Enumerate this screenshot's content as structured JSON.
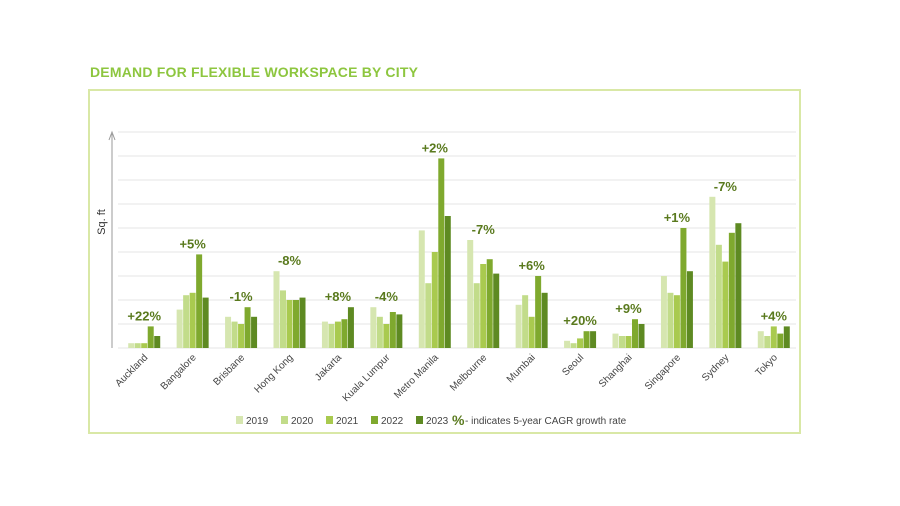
{
  "title": "DEMAND FOR FLEXIBLE WORKSPACE BY CITY",
  "legend_note_symbol": "%",
  "legend_note_text": " - indicates 5-year CAGR growth rate",
  "colors": {
    "title": "#8dc63f",
    "frame": "#d9e8a6",
    "s2019": "#d6e6b0",
    "s2020": "#c2dc8a",
    "s2021": "#a9ca4f",
    "s2022": "#7fa92e",
    "s2023": "#5e8a22",
    "annotation": "#5a7a1e",
    "grid": "#e6e6e6"
  },
  "chart_data": {
    "type": "bar",
    "title": "DEMAND FOR FLEXIBLE WORKSPACE BY CITY",
    "xlabel": "",
    "ylabel": "Sq. ft",
    "ylim": [
      0,
      9
    ],
    "grid": true,
    "legend_position": "bottom",
    "categories": [
      "Auckland",
      "Bangalore",
      "Brisbane",
      "Hong Kong",
      "Jakarta",
      "Kuala Lumpur",
      "Metro Manila",
      "Melbourne",
      "Mumbai",
      "Seoul",
      "Shanghai",
      "Singapore",
      "Sydney",
      "Tokyo"
    ],
    "series": [
      {
        "name": "2019",
        "values": [
          0.2,
          1.6,
          1.3,
          3.2,
          1.1,
          1.7,
          4.9,
          4.5,
          1.8,
          0.3,
          0.6,
          3.0,
          6.3,
          0.7
        ]
      },
      {
        "name": "2020",
        "values": [
          0.2,
          2.2,
          1.1,
          2.4,
          1.0,
          1.3,
          2.7,
          2.7,
          2.2,
          0.2,
          0.5,
          2.3,
          4.3,
          0.5
        ]
      },
      {
        "name": "2021",
        "values": [
          0.2,
          2.3,
          1.0,
          2.0,
          1.1,
          1.0,
          4.0,
          3.5,
          1.3,
          0.4,
          0.5,
          2.2,
          3.6,
          0.9
        ]
      },
      {
        "name": "2022",
        "values": [
          0.9,
          3.9,
          1.7,
          2.0,
          1.2,
          1.5,
          7.9,
          3.7,
          3.0,
          0.7,
          1.2,
          5.0,
          4.8,
          0.6
        ]
      },
      {
        "name": "2023",
        "values": [
          0.5,
          2.1,
          1.3,
          2.1,
          1.7,
          1.4,
          5.5,
          3.1,
          2.3,
          0.7,
          1.0,
          3.2,
          5.2,
          0.9
        ]
      }
    ],
    "annotations": [
      "+22%",
      "+5%",
      "-1%",
      "-8%",
      "+8%",
      "-4%",
      "+2%",
      "-7%",
      "+6%",
      "+20%",
      "+9%",
      "+1%",
      "-7%",
      "+4%"
    ]
  }
}
